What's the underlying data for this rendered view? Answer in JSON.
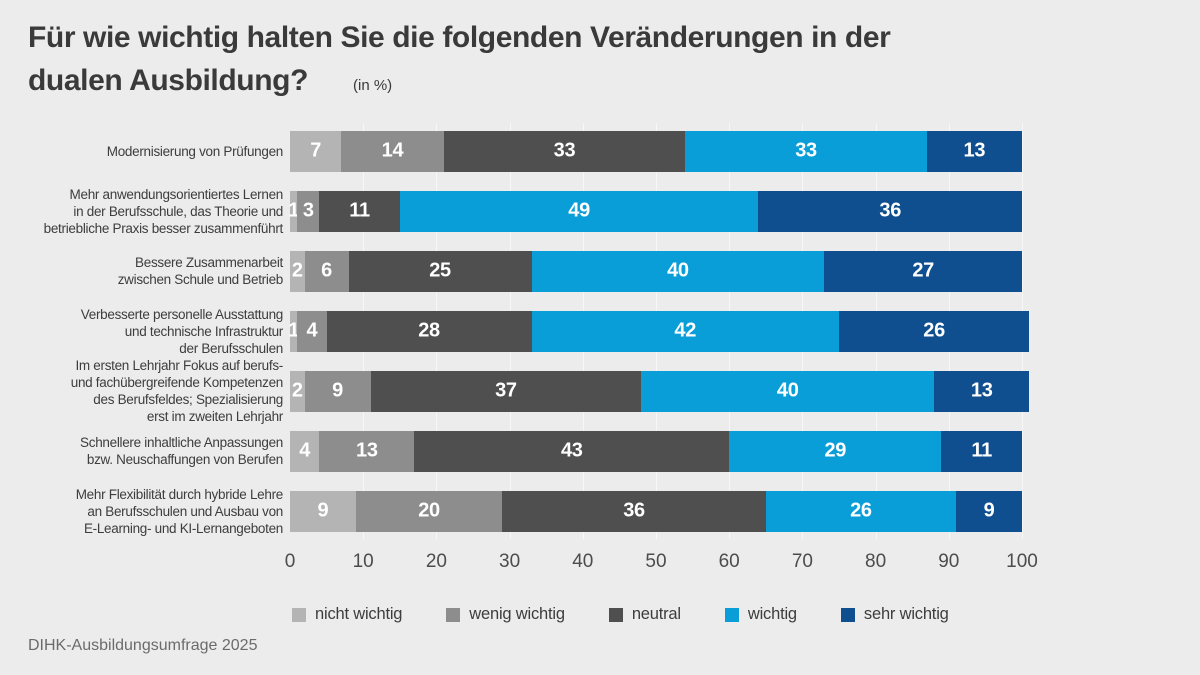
{
  "header": {
    "title_line1": "Für wie wichtig halten Sie die folgenden Veränderungen in der",
    "title_line2": "dualen Ausbildung?",
    "unit_note": "(in %)"
  },
  "footer": {
    "source": "DIHK-Ausbildungsumfrage 2025"
  },
  "palette": {
    "background": "#ececec",
    "grid_line": "#f7f7f7",
    "title_text": "#3a3a3a",
    "axis_text": "#4c4c4c",
    "bar_value_text": "#ffffff"
  },
  "chart_data": {
    "type": "bar",
    "orientation": "horizontal",
    "stacked": true,
    "unit": "%",
    "xlim": [
      0,
      100
    ],
    "x_ticks": [
      0,
      10,
      20,
      30,
      40,
      50,
      60,
      70,
      80,
      90,
      100
    ],
    "grid": true,
    "legend_position": "bottom",
    "title": "Für wie wichtig halten Sie die folgenden Veränderungen in der dualen Ausbildung? (in %)",
    "categories": [
      {
        "label": "Modernisierung von Prüfungen",
        "lines": [
          "Modernisierung von Prüfungen"
        ]
      },
      {
        "label": "Mehr anwendungsorientiertes Lernen in der Berufsschule, das Theorie und betriebliche Praxis besser zusammenführt",
        "lines": [
          "Mehr anwendungsorientiertes Lernen",
          "in der Berufsschule, das Theorie und",
          "betriebliche Praxis besser zusammenführt"
        ]
      },
      {
        "label": "Bessere Zusammenarbeit zwischen Schule und Betrieb",
        "lines": [
          "Bessere Zusammenarbeit",
          "zwischen Schule und Betrieb"
        ]
      },
      {
        "label": "Verbesserte personelle Ausstattung und technische Infrastruktur der Berufsschulen",
        "lines": [
          "Verbesserte personelle Ausstattung",
          "und technische Infrastruktur",
          "der Berufsschulen"
        ]
      },
      {
        "label": "Im ersten Lehrjahr Fokus auf berufs- und fachübergreifende Kompetenzen des Berufsfeldes; Spezialisierung erst im zweiten Lehrjahr",
        "lines": [
          "Im ersten Lehrjahr Fokus auf berufs-",
          "und fachübergreifende Kompetenzen",
          "des Berufsfeldes; Spezialisierung",
          "erst im zweiten Lehrjahr"
        ]
      },
      {
        "label": "Schnellere inhaltliche Anpassungen bzw. Neuschaffungen von Berufen",
        "lines": [
          "Schnellere inhaltliche Anpassungen",
          "bzw. Neuschaffungen von Berufen"
        ]
      },
      {
        "label": "Mehr Flexibilität durch hybride Lehre an Berufsschulen und Ausbau von E-Learning- und KI-Lernangeboten",
        "lines": [
          "Mehr Flexibilität durch hybride Lehre",
          "an Berufsschulen und Ausbau von",
          "E-Learning- und KI-Lernangeboten"
        ]
      }
    ],
    "series": [
      {
        "name": "nicht wichtig",
        "color": "#b4b4b4",
        "values": [
          7,
          1,
          2,
          1,
          2,
          4,
          9
        ]
      },
      {
        "name": "wenig wichtig",
        "color": "#8d8d8d",
        "values": [
          14,
          3,
          6,
          4,
          9,
          13,
          20
        ]
      },
      {
        "name": "neutral",
        "color": "#4f4f4f",
        "values": [
          33,
          11,
          25,
          28,
          37,
          43,
          36
        ]
      },
      {
        "name": "wichtig",
        "color": "#0a9ed9",
        "values": [
          33,
          49,
          40,
          42,
          40,
          29,
          26
        ]
      },
      {
        "name": "sehr wichtig",
        "color": "#104f8f",
        "values": [
          13,
          36,
          27,
          26,
          13,
          11,
          9
        ]
      }
    ]
  }
}
